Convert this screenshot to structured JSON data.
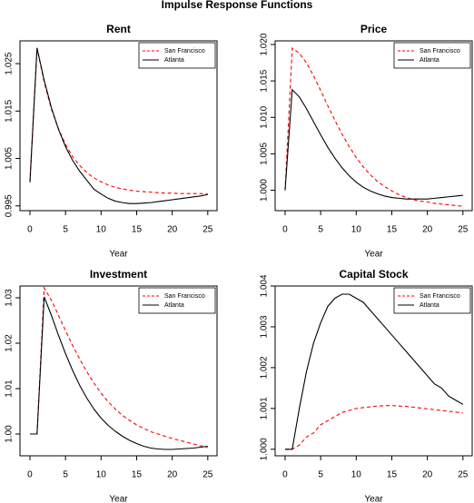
{
  "title": "Impulse Response Functions",
  "chart_data": [
    {
      "type": "line",
      "title": "Rent",
      "xlabel": "Year",
      "legend": "topright",
      "x": [
        0,
        1,
        2,
        3,
        4,
        5,
        6,
        7,
        8,
        9,
        10,
        11,
        12,
        13,
        14,
        15,
        16,
        17,
        18,
        19,
        20,
        21,
        22,
        23,
        24,
        25
      ],
      "xlim": [
        -1.4,
        26.3
      ],
      "xticks": [
        0,
        5,
        10,
        15,
        20,
        25
      ],
      "ylim": [
        0.994,
        1.0298
      ],
      "yticks": [
        0.995,
        1.005,
        1.015,
        1.025
      ],
      "series": [
        {
          "name": "San Francisco",
          "color": "red",
          "linestyle": "dashed",
          "values": [
            1.0,
            1.0283,
            1.0211,
            1.0155,
            1.0113,
            1.008,
            1.0054,
            1.0035,
            1.002,
            1.0009,
            1.0001,
            0.9994,
            0.9989,
            0.9986,
            0.9983,
            0.9981,
            0.998,
            0.9979,
            0.9978,
            0.9977,
            0.9977,
            0.9976,
            0.9976,
            0.9976,
            0.9976,
            0.9975
          ]
        },
        {
          "name": "Atlanta",
          "color": "black",
          "linestyle": "solid",
          "values": [
            1.0,
            1.0283,
            1.0215,
            1.0158,
            1.0112,
            1.0075,
            1.0046,
            1.0023,
            1.0004,
            0.9985,
            0.9975,
            0.9966,
            0.996,
            0.9957,
            0.9955,
            0.9955,
            0.9956,
            0.9957,
            0.9959,
            0.9961,
            0.9963,
            0.9965,
            0.9967,
            0.9969,
            0.9971,
            0.9974
          ]
        }
      ]
    },
    {
      "type": "line",
      "title": "Price",
      "xlabel": "Year",
      "legend": "topright",
      "x": [
        0,
        1,
        2,
        3,
        4,
        5,
        6,
        7,
        8,
        9,
        10,
        11,
        12,
        13,
        14,
        15,
        16,
        17,
        18,
        19,
        20,
        21,
        22,
        23,
        24,
        25
      ],
      "xlim": [
        -1.4,
        26.3
      ],
      "xticks": [
        0,
        5,
        10,
        15,
        20,
        25
      ],
      "ylim": [
        0.9972,
        1.0205
      ],
      "yticks": [
        {
          "value": 1.0,
          "label": "1.000"
        },
        1.005,
        {
          "value": 1.01,
          "label": "1.010"
        },
        1.015,
        {
          "value": 1.02,
          "label": "1.020"
        }
      ],
      "series": [
        {
          "name": "San Francisco",
          "color": "red",
          "linestyle": "dashed",
          "values": [
            1.0,
            1.0195,
            1.0188,
            1.0175,
            1.0157,
            1.0137,
            1.0116,
            1.0096,
            1.0077,
            1.006,
            1.0045,
            1.0032,
            1.0021,
            1.0012,
            1.0005,
            0.9999,
            0.9994,
            0.999,
            0.9987,
            0.9985,
            0.9984,
            0.9982,
            0.9981,
            0.998,
            0.9979,
            0.9978
          ]
        },
        {
          "name": "Atlanta",
          "color": "black",
          "linestyle": "solid",
          "values": [
            1.0,
            1.0138,
            1.0128,
            1.0112,
            1.0094,
            1.0076,
            1.0059,
            1.0044,
            1.0031,
            1.002,
            1.0011,
            1.0004,
            0.9999,
            0.9995,
            0.9992,
            0.999,
            0.9989,
            0.9988,
            0.9988,
            0.9988,
            0.9988,
            0.9989,
            0.999,
            0.9991,
            0.9992,
            0.9993
          ]
        }
      ]
    },
    {
      "type": "line",
      "title": "Investment",
      "xlabel": "Year",
      "legend": "topright",
      "x": [
        0,
        1,
        2,
        3,
        4,
        5,
        6,
        7,
        8,
        9,
        10,
        11,
        12,
        13,
        14,
        15,
        16,
        17,
        18,
        19,
        20,
        21,
        22,
        23,
        24,
        25
      ],
      "xlim": [
        -1.4,
        26.3
      ],
      "xticks": [
        0,
        5,
        10,
        15,
        20,
        25
      ],
      "ylim": [
        0.9952,
        1.0326
      ],
      "yticks": [
        {
          "value": 1.0,
          "label": "1.00"
        },
        1.01,
        1.02,
        1.03
      ],
      "series": [
        {
          "name": "San Francisco",
          "color": "red",
          "linestyle": "dashed",
          "values": [
            1.0,
            1.0,
            1.0322,
            1.0295,
            1.0262,
            1.0228,
            1.0195,
            1.0165,
            1.0137,
            1.0112,
            1.009,
            1.0071,
            1.0055,
            1.0041,
            1.003,
            1.002,
            1.0012,
            1.0005,
            1.0,
            0.9995,
            0.999,
            0.9986,
            0.9982,
            0.9978,
            0.9974,
            0.997
          ]
        },
        {
          "name": "Atlanta",
          "color": "black",
          "linestyle": "solid",
          "values": [
            1.0,
            1.0,
            1.0302,
            1.0262,
            1.0218,
            1.0177,
            1.014,
            1.0107,
            1.0079,
            1.0055,
            1.0035,
            1.0019,
            1.0006,
            0.9995,
            0.9986,
            0.9979,
            0.9973,
            0.9969,
            0.9967,
            0.9966,
            0.9966,
            0.9967,
            0.9968,
            0.9969,
            0.9971,
            0.9973
          ]
        }
      ]
    },
    {
      "type": "line",
      "title": "Capital Stock",
      "xlabel": "Year",
      "legend": "topright",
      "x": [
        0,
        1,
        2,
        3,
        4,
        5,
        6,
        7,
        8,
        9,
        10,
        11,
        12,
        13,
        14,
        15,
        16,
        17,
        18,
        19,
        20,
        21,
        22,
        23,
        24,
        25
      ],
      "xlim": [
        -1.4,
        26.3
      ],
      "xticks": [
        0,
        5,
        10,
        15,
        20,
        25
      ],
      "ylim": [
        0.99984,
        1.004
      ],
      "yticks": [
        {
          "value": 1.0,
          "label": "1.000"
        },
        1.001,
        1.002,
        1.003,
        1.004
      ],
      "series": [
        {
          "name": "San Francisco",
          "color": "red",
          "linestyle": "dashed",
          "values": [
            1.0,
            1.0,
            1.0001,
            1.0003,
            1.0004,
            1.0006,
            1.0007,
            1.0008,
            1.0009,
            1.00095,
            1.001,
            1.00102,
            1.00104,
            1.00106,
            1.00107,
            1.00107,
            1.00106,
            1.00105,
            1.00103,
            1.00101,
            1.00099,
            1.00097,
            1.00095,
            1.00093,
            1.00091,
            1.00089
          ]
        },
        {
          "name": "Atlanta",
          "color": "black",
          "linestyle": "solid",
          "values": [
            1.0,
            1.0,
            1.001,
            1.0019,
            1.0026,
            1.0031,
            1.0035,
            1.0037,
            1.0038,
            1.0038,
            1.0037,
            1.0036,
            1.0034,
            1.0032,
            1.003,
            1.0028,
            1.0026,
            1.0024,
            1.0022,
            1.002,
            1.0018,
            1.0016,
            1.0015,
            1.0013,
            1.0012,
            1.0011
          ]
        }
      ]
    }
  ]
}
